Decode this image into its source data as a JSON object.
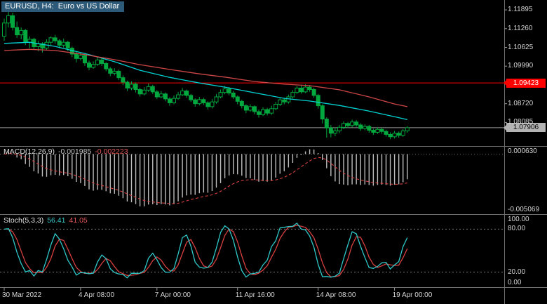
{
  "header": {
    "title": "EURUSD, H4:  Euro vs US Dollar"
  },
  "colors": {
    "background": "#000000",
    "candle": "#00a83e",
    "ma_fast": "#00d2d2",
    "ma_slow": "#cf4646",
    "hline_red": "#ff0000",
    "bid_line": "#9a9a9a",
    "macd_hist": "#bdbdbd",
    "macd_signal": "#d84040",
    "stoch_main": "#2fc8c8",
    "stoch_signal": "#d84040",
    "axis_text": "#d6d6d6",
    "separator": "#6e6e6e"
  },
  "indicators": {
    "macd": {
      "label": "MACD(12,26,9)",
      "value_main": "-0.001985",
      "value_signal": "-0.002223",
      "scale_max": {
        "label": "0.000630",
        "value": 0.00063
      },
      "scale_min": {
        "label": "-0.005069",
        "value": -0.005069
      }
    },
    "stoch": {
      "label": "Stoch(5,3,3)",
      "value_main": "56.41",
      "value_signal": "41.05",
      "scale": [
        {
          "label": "100.00",
          "value": 100
        },
        {
          "label": "80.00",
          "value": 80
        },
        {
          "label": "20.00",
          "value": 20
        },
        {
          "label": "0.00",
          "value": 0
        }
      ],
      "levels": [
        80,
        20
      ]
    }
  },
  "price_axis": {
    "ticks": [
      {
        "label": "1.11895",
        "value": 1.11895
      },
      {
        "label": "1.11260",
        "value": 1.1126
      },
      {
        "label": "1.10625",
        "value": 1.10625
      },
      {
        "label": "1.09990",
        "value": 1.0999
      },
      {
        "label": "1.08720",
        "value": 1.0872
      },
      {
        "label": "1.08085",
        "value": 1.08085
      }
    ],
    "red_line": {
      "label": "1.09423",
      "value": 1.09423
    },
    "bid": {
      "label": "1.07906",
      "value": 1.07906
    }
  },
  "time_axis": {
    "labels": [
      {
        "label": "30 Mar 2022",
        "index": 0
      },
      {
        "label": "4 Apr 08:00",
        "index": 18
      },
      {
        "label": "7 Apr 00:00",
        "index": 36
      },
      {
        "label": "11 Apr 16:00",
        "index": 55
      },
      {
        "label": "14 Apr 08:00",
        "index": 74
      },
      {
        "label": "19 Apr 00:00",
        "index": 92
      }
    ]
  },
  "chart_data": {
    "type": "candlestick",
    "title": "EURUSD, H4: Euro vs US Dollar",
    "symbol": "EURUSD",
    "timeframe": "H4",
    "price_panel": {
      "ylim": [
        1.0731,
        1.1223
      ],
      "hline_red": 1.09423,
      "bid_line": 1.07906,
      "candles": [
        [
          1.11,
          1.116,
          1.1085,
          1.1145
        ],
        [
          1.1145,
          1.11895,
          1.113,
          1.117
        ],
        [
          1.117,
          1.118,
          1.112,
          1.113
        ],
        [
          1.113,
          1.115,
          1.1095,
          1.1105
        ],
        [
          1.1105,
          1.113,
          1.109,
          1.112
        ],
        [
          1.112,
          1.1125,
          1.107,
          1.108
        ],
        [
          1.108,
          1.11,
          1.106,
          1.109
        ],
        [
          1.109,
          1.1095,
          1.1055,
          1.1065
        ],
        [
          1.1065,
          1.1085,
          1.105,
          1.1075
        ],
        [
          1.1075,
          1.108,
          1.1045,
          1.106
        ],
        [
          1.106,
          1.109,
          1.1055,
          1.108
        ],
        [
          1.108,
          1.11,
          1.107,
          1.1095
        ],
        [
          1.1095,
          1.1105,
          1.1075,
          1.1085
        ],
        [
          1.1085,
          1.109,
          1.106,
          1.107
        ],
        [
          1.107,
          1.1092,
          1.1062,
          1.108
        ],
        [
          1.108,
          1.1085,
          1.105,
          1.106
        ],
        [
          1.106,
          1.1065,
          1.103,
          1.104
        ],
        [
          1.104,
          1.1048,
          1.1012,
          1.1025
        ],
        [
          1.1025,
          1.1045,
          1.1018,
          1.1035
        ],
        [
          1.1035,
          1.104,
          1.1,
          1.101
        ],
        [
          1.101,
          1.1018,
          1.0985,
          1.0995
        ],
        [
          1.0995,
          1.1015,
          1.099,
          1.1005
        ],
        [
          1.1005,
          1.103,
          1.1,
          1.102
        ],
        [
          1.102,
          1.1026,
          1.1,
          1.1008
        ],
        [
          1.1008,
          1.1012,
          1.0982,
          1.099
        ],
        [
          1.099,
          1.0996,
          1.0965,
          1.0975
        ],
        [
          1.0975,
          1.0992,
          1.0968,
          1.0982
        ],
        [
          1.0982,
          1.0988,
          1.0952,
          1.096
        ],
        [
          1.096,
          1.0968,
          1.0935,
          1.0945
        ],
        [
          1.0945,
          1.095,
          1.0915,
          1.0925
        ],
        [
          1.0925,
          1.0948,
          1.0918,
          1.0938
        ],
        [
          1.0938,
          1.0944,
          1.091,
          1.092
        ],
        [
          1.092,
          1.0926,
          1.0896,
          1.0905
        ],
        [
          1.0905,
          1.0928,
          1.09,
          1.0918
        ],
        [
          1.0918,
          1.094,
          1.0912,
          1.093
        ],
        [
          1.093,
          1.0936,
          1.0905,
          1.0912
        ],
        [
          1.0912,
          1.0918,
          1.0888,
          1.0895
        ],
        [
          1.0895,
          1.0915,
          1.089,
          1.0905
        ],
        [
          1.0905,
          1.091,
          1.088,
          1.0888
        ],
        [
          1.0888,
          1.0894,
          1.0865,
          1.0875
        ],
        [
          1.0875,
          1.09,
          1.087,
          1.089
        ],
        [
          1.089,
          1.0912,
          1.0885,
          1.0902
        ],
        [
          1.0902,
          1.0925,
          1.0898,
          1.0915
        ],
        [
          1.0915,
          1.092,
          1.0892,
          1.09
        ],
        [
          1.09,
          1.0905,
          1.0878,
          1.0885
        ],
        [
          1.0885,
          1.089,
          1.0862,
          1.0872
        ],
        [
          1.0872,
          1.0895,
          1.0866,
          1.0886
        ],
        [
          1.0886,
          1.0892,
          1.0868,
          1.0875
        ],
        [
          1.0875,
          1.088,
          1.0852,
          1.0862
        ],
        [
          1.0862,
          1.0888,
          1.0856,
          1.0878
        ],
        [
          1.0878,
          1.0905,
          1.0872,
          1.0895
        ],
        [
          1.0895,
          1.092,
          1.089,
          1.091
        ],
        [
          1.091,
          1.0932,
          1.0904,
          1.0922
        ],
        [
          1.0922,
          1.0928,
          1.09,
          1.0908
        ],
        [
          1.0908,
          1.0915,
          1.0888,
          1.0895
        ],
        [
          1.0895,
          1.09,
          1.087,
          1.088
        ],
        [
          1.088,
          1.0885,
          1.0856,
          1.0865
        ],
        [
          1.0865,
          1.087,
          1.084,
          1.085
        ],
        [
          1.085,
          1.087,
          1.0844,
          1.0862
        ],
        [
          1.0862,
          1.0866,
          1.0836,
          1.0845
        ],
        [
          1.0845,
          1.0852,
          1.0825,
          1.0835
        ],
        [
          1.0835,
          1.086,
          1.083,
          1.0852
        ],
        [
          1.0852,
          1.0858,
          1.0832,
          1.084
        ],
        [
          1.084,
          1.0865,
          1.0834,
          1.0855
        ],
        [
          1.0855,
          1.0878,
          1.085,
          1.087
        ],
        [
          1.087,
          1.0893,
          1.0864,
          1.0885
        ],
        [
          1.0885,
          1.0892,
          1.087,
          1.0878
        ],
        [
          1.0878,
          1.0903,
          1.0872,
          1.0895
        ],
        [
          1.0895,
          1.0918,
          1.089,
          1.091
        ],
        [
          1.091,
          1.0933,
          1.0905,
          1.0925
        ],
        [
          1.0925,
          1.0936,
          1.0906,
          1.0912
        ],
        [
          1.0912,
          1.0938,
          1.0908,
          1.0928
        ],
        [
          1.0928,
          1.0935,
          1.0912,
          1.092
        ],
        [
          1.092,
          1.0926,
          1.0892,
          1.09
        ],
        [
          1.09,
          1.0905,
          1.0855,
          1.0865
        ],
        [
          1.0865,
          1.087,
          1.0805,
          1.082
        ],
        [
          1.082,
          1.0826,
          1.0757,
          1.079
        ],
        [
          1.079,
          1.08,
          1.0758,
          1.0772
        ],
        [
          1.0772,
          1.0792,
          1.0762,
          1.078
        ],
        [
          1.078,
          1.08,
          1.0772,
          1.0792
        ],
        [
          1.0792,
          1.0812,
          1.0786,
          1.0805
        ],
        [
          1.0805,
          1.081,
          1.079,
          1.0798
        ],
        [
          1.0798,
          1.0818,
          1.0792,
          1.081
        ],
        [
          1.081,
          1.0816,
          1.0794,
          1.08
        ],
        [
          1.08,
          1.0806,
          1.078,
          1.0788
        ],
        [
          1.0788,
          1.0802,
          1.0782,
          1.0795
        ],
        [
          1.0795,
          1.08,
          1.0774,
          1.0782
        ],
        [
          1.0782,
          1.0788,
          1.0766,
          1.0775
        ],
        [
          1.0775,
          1.0792,
          1.077,
          1.0785
        ],
        [
          1.0785,
          1.079,
          1.077,
          1.0778
        ],
        [
          1.0778,
          1.0784,
          1.076,
          1.0768
        ],
        [
          1.0768,
          1.0775,
          1.0752,
          1.076
        ],
        [
          1.076,
          1.078,
          1.0754,
          1.0772
        ],
        [
          1.0772,
          1.0778,
          1.0757,
          1.0765
        ],
        [
          1.0765,
          1.0786,
          1.076,
          1.078
        ],
        [
          1.078,
          1.0796,
          1.0774,
          1.07906
        ]
      ],
      "ma_fast_points": [
        [
          0,
          1.1076
        ],
        [
          6,
          1.108
        ],
        [
          12,
          1.1066
        ],
        [
          19,
          1.1042
        ],
        [
          26,
          1.1014
        ],
        [
          32,
          1.0985
        ],
        [
          39,
          1.0961
        ],
        [
          46,
          1.0942
        ],
        [
          52,
          1.0928
        ],
        [
          59,
          1.0909
        ],
        [
          66,
          1.089
        ],
        [
          72,
          1.0881
        ],
        [
          79,
          1.0866
        ],
        [
          86,
          1.0847
        ],
        [
          92,
          1.0828
        ],
        [
          95,
          1.0818
        ]
      ],
      "ma_slow_points": [
        [
          0,
          1.1052
        ],
        [
          6,
          1.1056
        ],
        [
          12,
          1.1052
        ],
        [
          19,
          1.1038
        ],
        [
          26,
          1.1021
        ],
        [
          32,
          1.1004
        ],
        [
          39,
          1.0988
        ],
        [
          46,
          1.0973
        ],
        [
          52,
          1.0962
        ],
        [
          59,
          1.0947
        ],
        [
          66,
          1.0938
        ],
        [
          72,
          1.0933
        ],
        [
          79,
          1.0919
        ],
        [
          86,
          1.0895
        ],
        [
          92,
          1.0871
        ],
        [
          95,
          1.0862
        ]
      ]
    },
    "macd_panel": {
      "params": [
        12,
        26,
        9
      ],
      "ylim": [
        -0.005069,
        0.00063
      ],
      "current": [
        -0.001985,
        -0.002223
      ]
    },
    "stoch_panel": {
      "params": [
        5,
        3,
        3
      ],
      "ylim": [
        0,
        100
      ],
      "levels": [
        20,
        80
      ],
      "current": [
        56.41,
        41.05
      ]
    }
  }
}
